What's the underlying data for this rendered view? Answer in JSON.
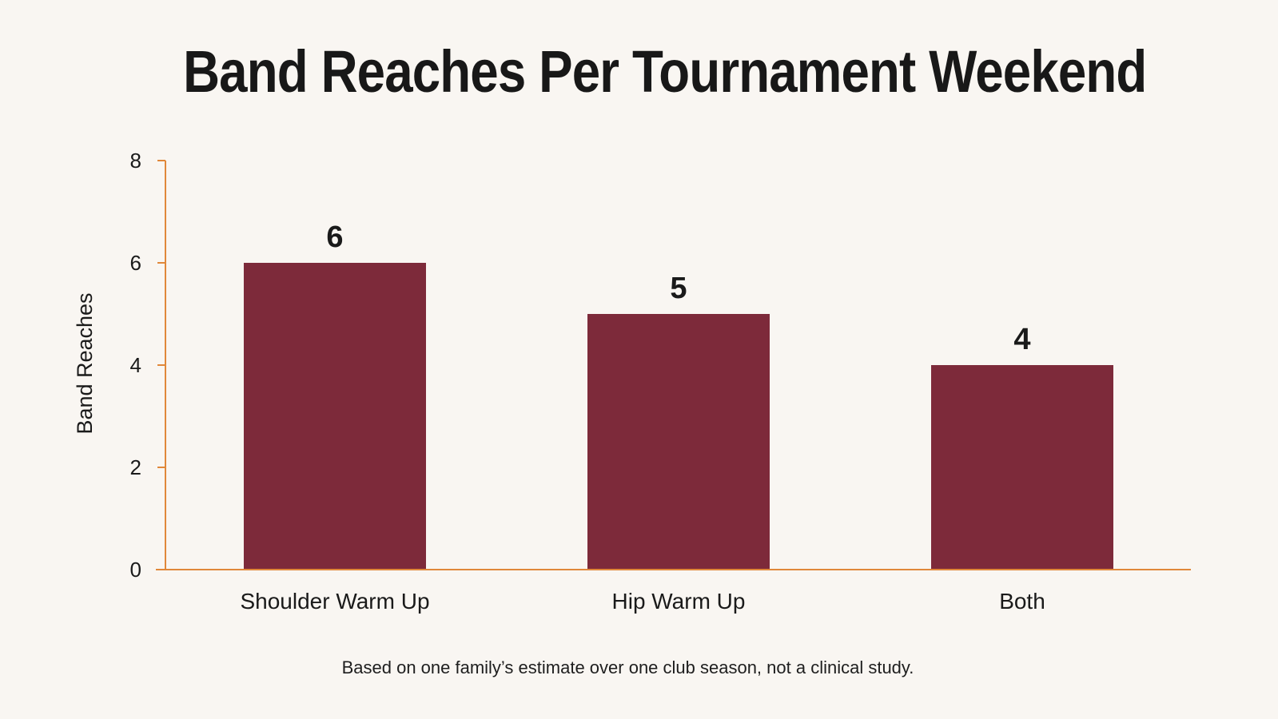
{
  "chart_data": {
    "type": "bar",
    "title": "Band Reaches Per Tournament Weekend",
    "ylabel": "Band Reaches",
    "xlabel": "",
    "categories": [
      "Shoulder Warm Up",
      "Hip Warm Up",
      "Both"
    ],
    "values": [
      6,
      5,
      4
    ],
    "data_labels": [
      "6",
      "5",
      "4"
    ],
    "ylim": [
      0,
      8
    ],
    "yticks": [
      0,
      2,
      4,
      6,
      8
    ],
    "ytick_labels": [
      "0",
      "2",
      "4",
      "6",
      "8"
    ],
    "grid": false,
    "legend": "none",
    "bar_color": "#7d2a3a",
    "axis_color": "#e0883a",
    "footnote": "Based on one family’s estimate over one club season, not a clinical study."
  }
}
